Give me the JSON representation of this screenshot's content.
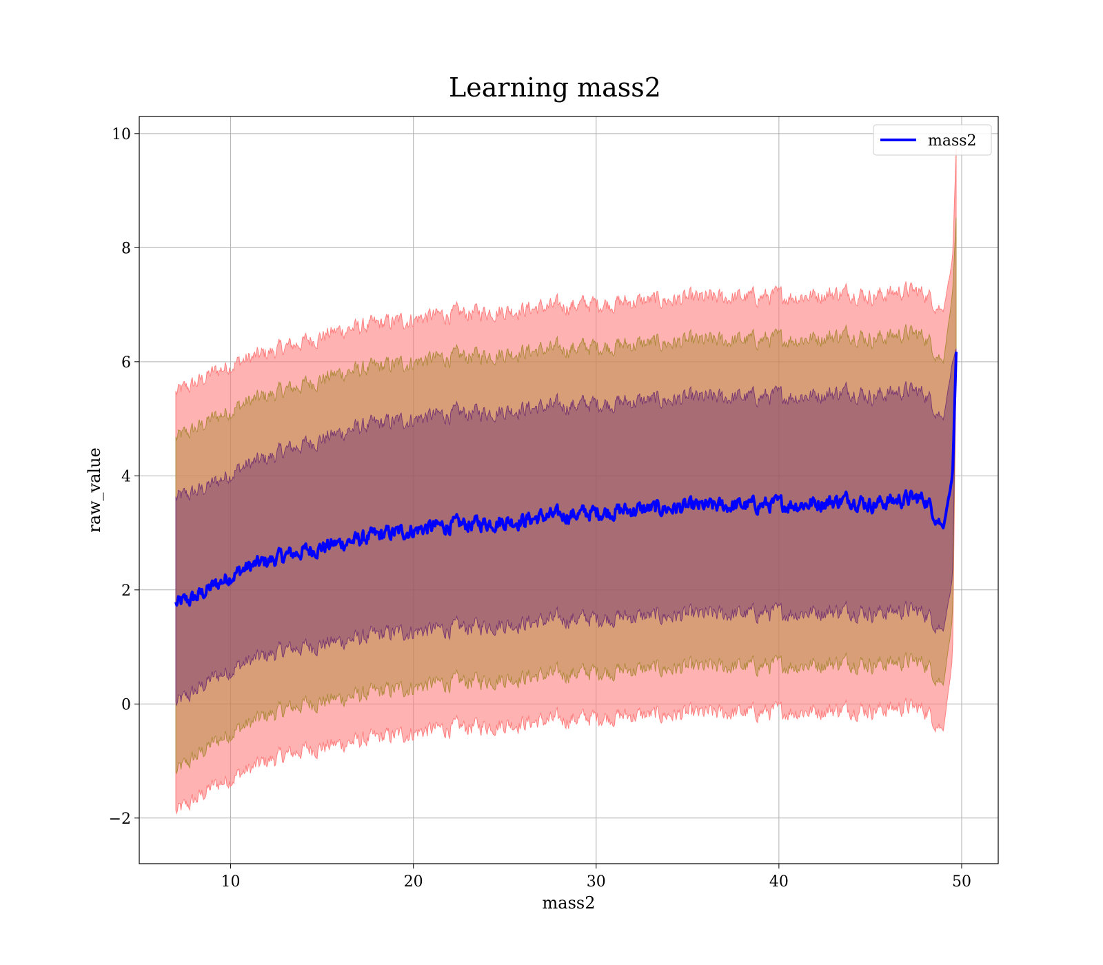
{
  "chart_data": {
    "type": "line",
    "title": "Learning mass2",
    "xlabel": "mass2",
    "ylabel": "raw_value",
    "xlim": [
      5,
      52
    ],
    "ylim": [
      -2.8,
      10.3
    ],
    "xticks": [
      10,
      20,
      30,
      40,
      50
    ],
    "yticks": [
      -2,
      0,
      2,
      4,
      6,
      8,
      10
    ],
    "xtick_labels": [
      "10",
      "20",
      "30",
      "40",
      "50"
    ],
    "ytick_labels": [
      "−2",
      "0",
      "2",
      "4",
      "6",
      "8",
      "10"
    ],
    "grid": true,
    "legend": {
      "placement": "top-right",
      "entries": [
        "mass2"
      ]
    },
    "colors": {
      "line": "#0000ff",
      "band_outer": "#ff7f7f",
      "band_middle": "#b08a3e",
      "band_inner": "#7a3a70"
    },
    "series": [
      {
        "name": "mass2",
        "x": [
          7.0,
          8.0,
          9.0,
          10.0,
          11.0,
          12.0,
          13.0,
          14.0,
          15.0,
          16.0,
          17.0,
          18.0,
          19.0,
          20.0,
          21.0,
          22.0,
          23.0,
          24.0,
          25.0,
          26.0,
          27.0,
          28.0,
          29.0,
          30.0,
          31.0,
          32.0,
          33.0,
          34.0,
          35.0,
          36.0,
          37.0,
          38.0,
          39.0,
          40.0,
          41.0,
          42.0,
          43.0,
          44.0,
          45.0,
          46.0,
          47.0,
          48.0,
          49.0,
          49.5,
          49.7
        ],
        "y": [
          1.75,
          1.85,
          2.05,
          2.25,
          2.4,
          2.5,
          2.6,
          2.68,
          2.75,
          2.82,
          2.88,
          2.95,
          3.0,
          3.05,
          3.1,
          3.13,
          3.15,
          3.18,
          3.2,
          3.22,
          3.28,
          3.3,
          3.33,
          3.36,
          3.38,
          3.4,
          3.42,
          3.43,
          3.45,
          3.46,
          3.47,
          3.48,
          3.49,
          3.5,
          3.5,
          3.52,
          3.55,
          3.6,
          3.5,
          3.55,
          3.6,
          3.6,
          3.1,
          4.0,
          6.15
        ],
        "band_1sigma": {
          "lower": [
            0.0,
            0.2,
            0.45,
            0.6,
            0.75,
            0.85,
            0.95,
            1.0,
            1.05,
            1.1,
            1.15,
            1.2,
            1.25,
            1.28,
            1.3,
            1.32,
            1.35,
            1.38,
            1.4,
            1.42,
            1.45,
            1.48,
            1.5,
            1.5,
            1.52,
            1.53,
            1.53,
            1.54,
            1.55,
            1.56,
            1.57,
            1.58,
            1.6,
            1.6,
            1.6,
            1.62,
            1.63,
            1.65,
            1.6,
            1.62,
            1.65,
            1.6,
            1.3,
            2.2,
            6.1
          ],
          "upper": [
            3.6,
            3.7,
            3.85,
            4.05,
            4.2,
            4.3,
            4.45,
            4.55,
            4.65,
            4.75,
            4.85,
            4.9,
            4.95,
            5.0,
            5.05,
            5.08,
            5.1,
            5.12,
            5.15,
            5.18,
            5.2,
            5.22,
            5.25,
            5.27,
            5.28,
            5.3,
            5.32,
            5.33,
            5.35,
            5.36,
            5.37,
            5.38,
            5.39,
            5.4,
            5.4,
            5.42,
            5.45,
            5.5,
            5.4,
            5.45,
            5.5,
            5.45,
            5.0,
            6.0,
            6.2
          ]
        },
        "band_2sigma": {
          "lower": [
            -1.2,
            -0.95,
            -0.7,
            -0.5,
            -0.35,
            -0.2,
            -0.1,
            0.0,
            0.05,
            0.1,
            0.15,
            0.2,
            0.25,
            0.3,
            0.35,
            0.38,
            0.4,
            0.42,
            0.45,
            0.47,
            0.5,
            0.52,
            0.55,
            0.57,
            0.58,
            0.6,
            0.61,
            0.62,
            0.63,
            0.64,
            0.65,
            0.66,
            0.67,
            0.68,
            0.68,
            0.7,
            0.72,
            0.75,
            0.7,
            0.72,
            0.75,
            0.72,
            0.35,
            1.5,
            6.1
          ],
          "upper": [
            4.65,
            4.8,
            5.0,
            5.15,
            5.3,
            5.4,
            5.5,
            5.6,
            5.7,
            5.8,
            5.85,
            5.9,
            5.95,
            6.0,
            6.05,
            6.08,
            6.1,
            6.12,
            6.15,
            6.18,
            6.2,
            6.22,
            6.25,
            6.27,
            6.28,
            6.3,
            6.32,
            6.33,
            6.35,
            6.36,
            6.37,
            6.38,
            6.39,
            6.4,
            6.4,
            6.42,
            6.45,
            6.5,
            6.4,
            6.45,
            6.5,
            6.45,
            6.0,
            7.2,
            8.5
          ]
        },
        "band_3sigma": {
          "lower": [
            -1.9,
            -1.7,
            -1.45,
            -1.3,
            -1.15,
            -1.0,
            -0.9,
            -0.8,
            -0.75,
            -0.7,
            -0.65,
            -0.6,
            -0.55,
            -0.5,
            -0.45,
            -0.42,
            -0.4,
            -0.38,
            -0.35,
            -0.33,
            -0.3,
            -0.28,
            -0.25,
            -0.23,
            -0.22,
            -0.2,
            -0.2,
            -0.19,
            -0.18,
            -0.17,
            -0.16,
            -0.15,
            -0.14,
            -0.13,
            -0.13,
            -0.12,
            -0.1,
            -0.08,
            -0.1,
            -0.08,
            -0.05,
            -0.1,
            -0.45,
            0.8,
            6.1
          ],
          "upper": [
            5.45,
            5.6,
            5.8,
            5.95,
            6.05,
            6.15,
            6.25,
            6.35,
            6.45,
            6.55,
            6.6,
            6.65,
            6.7,
            6.75,
            6.8,
            6.83,
            6.85,
            6.88,
            6.9,
            6.92,
            6.95,
            6.97,
            7.0,
            7.02,
            7.03,
            7.05,
            7.07,
            7.08,
            7.1,
            7.11,
            7.12,
            7.13,
            7.14,
            7.15,
            7.15,
            7.17,
            7.2,
            7.22,
            7.15,
            7.2,
            7.25,
            7.2,
            6.9,
            7.8,
            9.7
          ]
        }
      }
    ]
  }
}
